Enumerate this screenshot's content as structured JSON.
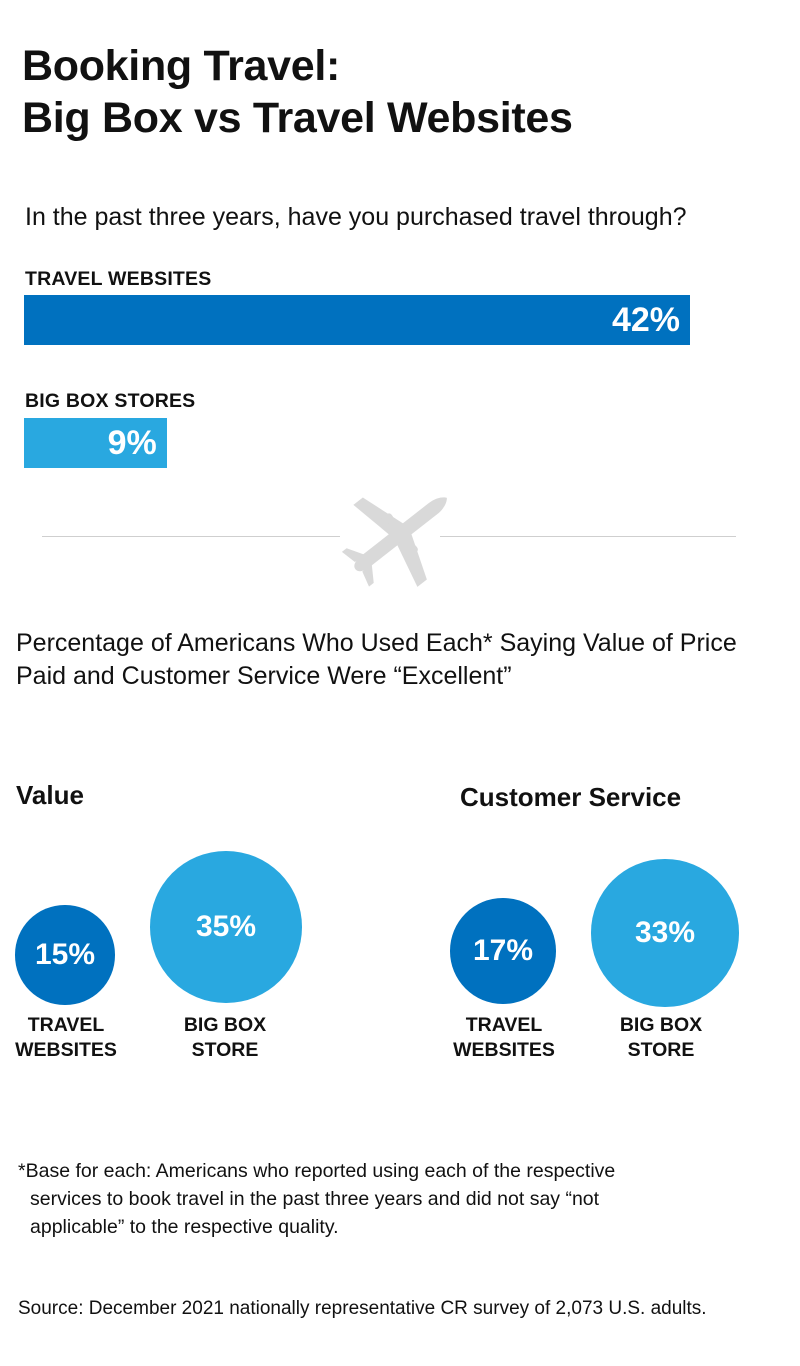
{
  "title_line1": "Booking Travel:",
  "title_line2": "Big Box vs Travel Websites",
  "question": "In the past three years, have you purchased travel through?",
  "subtitle": "Percentage of Americans Who Used Each* Saying Value of Price Paid and Customer Service Were “Excellent”",
  "footnote_line1": "*Base for each: Americans who reported using each of the respective",
  "footnote_line2": "services to book travel in the past three years and did not say “not",
  "footnote_line3": "applicable” to the respective quality.",
  "source": "Source: December 2021 nationally representative CR survey of 2,073 U.S. adults.",
  "colors": {
    "dark_blue": "#0071bf",
    "light_blue": "#29a8e0"
  },
  "icon": "airplane-icon",
  "chart_data": [
    {
      "type": "bar",
      "categories": [
        "TRAVEL WEBSITES",
        "BIG BOX STORES"
      ],
      "values": [
        42,
        9
      ],
      "value_labels": [
        "42%",
        "9%"
      ],
      "orientation": "horizontal",
      "scale_max": 42
    },
    {
      "type": "bubble",
      "title": "Value",
      "categories": [
        "TRAVEL WEBSITES",
        "BIG BOX STORE"
      ],
      "label_lines": [
        [
          "TRAVEL",
          "WEBSITES"
        ],
        [
          "BIG BOX",
          "STORE"
        ]
      ],
      "values": [
        15,
        35
      ],
      "value_labels": [
        "15%",
        "35%"
      ]
    },
    {
      "type": "bubble",
      "title": "Customer Service",
      "categories": [
        "TRAVEL WEBSITES",
        "BIG BOX STORE"
      ],
      "label_lines": [
        [
          "TRAVEL",
          "WEBSITES"
        ],
        [
          "BIG BOX",
          "STORE"
        ]
      ],
      "values": [
        17,
        33
      ],
      "value_labels": [
        "17%",
        "33%"
      ]
    }
  ]
}
